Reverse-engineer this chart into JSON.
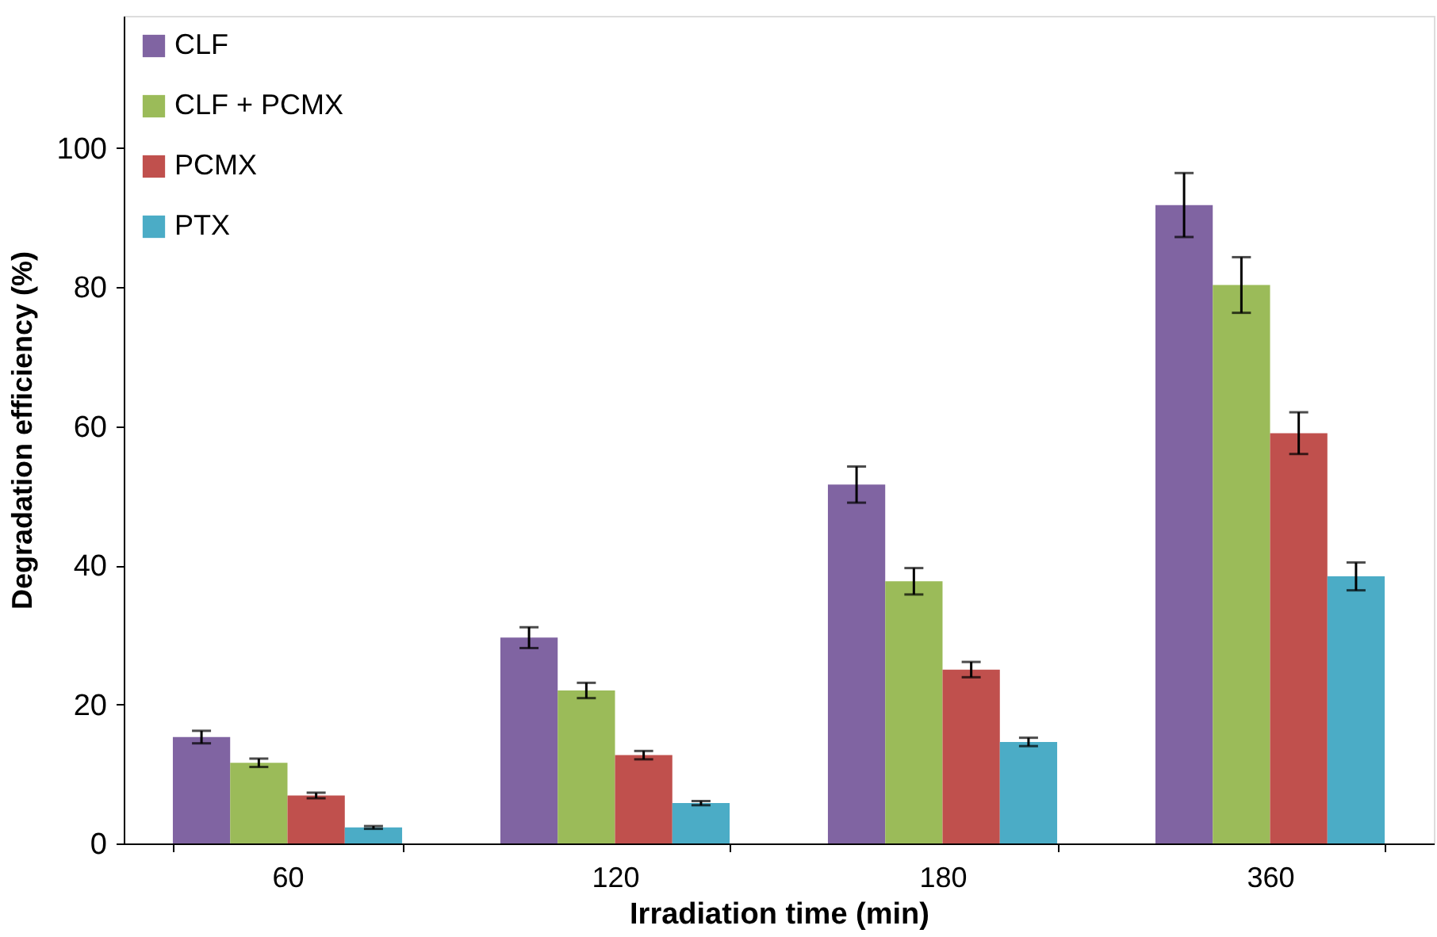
{
  "chart_data": {
    "type": "bar",
    "xlabel": "Irradiation time (min)",
    "ylabel": "Degradation efficiency  (%)",
    "categories": [
      "60",
      "120",
      "180",
      "360"
    ],
    "series": [
      {
        "name": "CLF",
        "color": "#8064a2",
        "values": [
          15.3,
          29.6,
          51.6,
          91.8
        ],
        "errors": [
          0.9,
          1.5,
          2.6,
          4.6
        ]
      },
      {
        "name": "CLF + PCMX",
        "color": "#9bbb59",
        "values": [
          11.6,
          22.0,
          37.7,
          80.3
        ],
        "errors": [
          0.6,
          1.1,
          1.9,
          4.0
        ]
      },
      {
        "name": "PCMX",
        "color": "#c0504d",
        "values": [
          6.9,
          12.7,
          25.0,
          59.0
        ],
        "errors": [
          0.4,
          0.6,
          1.1,
          3.0
        ]
      },
      {
        "name": "PTX",
        "color": "#4bacc6",
        "values": [
          2.3,
          5.8,
          14.6,
          38.4
        ],
        "errors": [
          0.2,
          0.3,
          0.6,
          2.0
        ]
      }
    ],
    "ylim": [
      0,
      119
    ],
    "yticks": [
      0,
      20,
      40,
      60,
      80,
      100
    ],
    "grid": false,
    "legend": "top left"
  }
}
